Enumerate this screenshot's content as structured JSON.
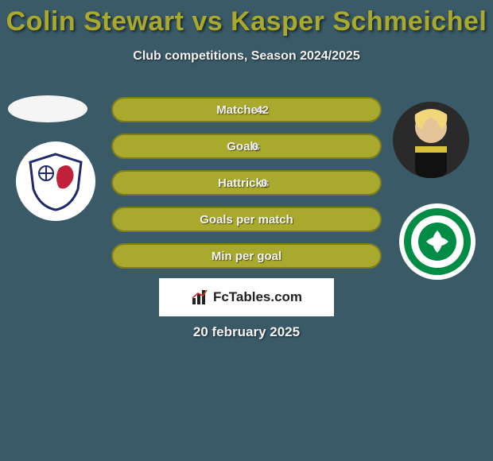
{
  "title": "Colin Stewart vs Kasper Schmeichel",
  "title_color": "#a9a92e",
  "subtitle": "Club competitions, Season 2024/2025",
  "subtitle_color": "#f2f2f2",
  "background_color": "#3a5a68",
  "date": "20 february 2025",
  "date_color": "#f5f5f5",
  "bars": {
    "bar_color": "#a9a92e",
    "border_color": "#7d7d1c",
    "text_color": "#f5f5f5",
    "items": [
      {
        "label": "Matches",
        "right": "42",
        "fill_ratio": 1.0
      },
      {
        "label": "Goals",
        "right": "0",
        "fill_ratio": 1.0
      },
      {
        "label": "Hattricks",
        "right": "0",
        "fill_ratio": 1.0
      },
      {
        "label": "Goals per match",
        "right": "",
        "fill_ratio": 1.0
      },
      {
        "label": "Min per goal",
        "right": "",
        "fill_ratio": 1.0
      }
    ]
  },
  "left_club": {
    "primary": "#1e2a6b",
    "accent": "#c0203a"
  },
  "right_club": {
    "primary": "#008c45",
    "ring": "#ffffff"
  },
  "logo_text": "FcTables.com",
  "type": "comparison-bars"
}
